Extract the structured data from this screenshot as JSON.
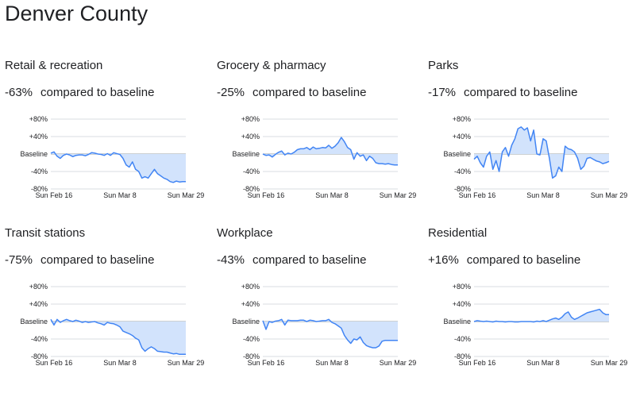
{
  "page": {
    "title": "Denver County"
  },
  "baseline_label": "compared to baseline",
  "y_ticks": [
    "+80%",
    "+40%",
    "Baseline",
    "-40%",
    "-80%"
  ],
  "x_ticks": [
    "Sun Feb 16",
    "Sun Mar 8",
    "Sun Mar 29"
  ],
  "colors": {
    "line": "#4285f4",
    "fill": "#d2e3fc",
    "grid": "#dadce0",
    "baseline": "#9aa0a6"
  },
  "chart_data": [
    {
      "type": "area",
      "title": "Retail & recreation",
      "change": "-63%",
      "ylim": [
        -80,
        80
      ],
      "x": [
        "Feb 15",
        "Feb 16",
        "Feb 17",
        "Feb 18",
        "Feb 19",
        "Feb 20",
        "Feb 21",
        "Feb 22",
        "Feb 23",
        "Feb 24",
        "Feb 25",
        "Feb 26",
        "Feb 27",
        "Feb 28",
        "Feb 29",
        "Mar 1",
        "Mar 2",
        "Mar 3",
        "Mar 4",
        "Mar 5",
        "Mar 6",
        "Mar 7",
        "Mar 8",
        "Mar 9",
        "Mar 10",
        "Mar 11",
        "Mar 12",
        "Mar 13",
        "Mar 14",
        "Mar 15",
        "Mar 16",
        "Mar 17",
        "Mar 18",
        "Mar 19",
        "Mar 20",
        "Mar 21",
        "Mar 22",
        "Mar 23",
        "Mar 24",
        "Mar 25",
        "Mar 26",
        "Mar 27",
        "Mar 28",
        "Mar 29"
      ],
      "values": [
        2,
        5,
        -5,
        -10,
        -3,
        0,
        -2,
        -6,
        -3,
        -2,
        -2,
        -4,
        -1,
        3,
        2,
        0,
        -1,
        -3,
        1,
        -3,
        3,
        1,
        -1,
        -10,
        -25,
        -30,
        -18,
        -35,
        -40,
        -55,
        -52,
        -55,
        -45,
        -35,
        -45,
        -50,
        -55,
        -58,
        -63,
        -65,
        -62,
        -64,
        -63,
        -63
      ]
    },
    {
      "type": "area",
      "title": "Grocery & pharmacy",
      "change": "-25%",
      "ylim": [
        -80,
        80
      ],
      "x": [
        "Feb 15",
        "Feb 16",
        "Feb 17",
        "Feb 18",
        "Feb 19",
        "Feb 20",
        "Feb 21",
        "Feb 22",
        "Feb 23",
        "Feb 24",
        "Feb 25",
        "Feb 26",
        "Feb 27",
        "Feb 28",
        "Feb 29",
        "Mar 1",
        "Mar 2",
        "Mar 3",
        "Mar 4",
        "Mar 5",
        "Mar 6",
        "Mar 7",
        "Mar 8",
        "Mar 9",
        "Mar 10",
        "Mar 11",
        "Mar 12",
        "Mar 13",
        "Mar 14",
        "Mar 15",
        "Mar 16",
        "Mar 17",
        "Mar 18",
        "Mar 19",
        "Mar 20",
        "Mar 21",
        "Mar 22",
        "Mar 23",
        "Mar 24",
        "Mar 25",
        "Mar 26",
        "Mar 27",
        "Mar 28",
        "Mar 29"
      ],
      "values": [
        0,
        -3,
        -2,
        -7,
        -1,
        4,
        7,
        -2,
        2,
        0,
        4,
        10,
        12,
        12,
        15,
        10,
        16,
        12,
        13,
        15,
        14,
        20,
        13,
        18,
        26,
        38,
        28,
        15,
        10,
        -12,
        3,
        -5,
        -2,
        -15,
        -5,
        -10,
        -20,
        -22,
        -22,
        -23,
        -22,
        -24,
        -25,
        -25
      ]
    },
    {
      "type": "area",
      "title": "Parks",
      "change": "-17%",
      "ylim": [
        -80,
        80
      ],
      "x": [
        "Feb 15",
        "Feb 16",
        "Feb 17",
        "Feb 18",
        "Feb 19",
        "Feb 20",
        "Feb 21",
        "Feb 22",
        "Feb 23",
        "Feb 24",
        "Feb 25",
        "Feb 26",
        "Feb 27",
        "Feb 28",
        "Feb 29",
        "Mar 1",
        "Mar 2",
        "Mar 3",
        "Mar 4",
        "Mar 5",
        "Mar 6",
        "Mar 7",
        "Mar 8",
        "Mar 9",
        "Mar 10",
        "Mar 11",
        "Mar 12",
        "Mar 13",
        "Mar 14",
        "Mar 15",
        "Mar 16",
        "Mar 17",
        "Mar 18",
        "Mar 19",
        "Mar 20",
        "Mar 21",
        "Mar 22",
        "Mar 23",
        "Mar 24",
        "Mar 25",
        "Mar 26",
        "Mar 27",
        "Mar 28",
        "Mar 29"
      ],
      "values": [
        -12,
        -5,
        -20,
        -30,
        -5,
        5,
        -35,
        -15,
        -40,
        5,
        15,
        -5,
        20,
        35,
        58,
        62,
        55,
        60,
        30,
        55,
        0,
        -2,
        35,
        30,
        -10,
        -55,
        -50,
        -30,
        -40,
        18,
        12,
        10,
        5,
        -10,
        -35,
        -28,
        -10,
        -8,
        -12,
        -16,
        -18,
        -22,
        -20,
        -17
      ]
    },
    {
      "type": "area",
      "title": "Transit stations",
      "change": "-75%",
      "ylim": [
        -80,
        80
      ],
      "x": [
        "Feb 15",
        "Feb 16",
        "Feb 17",
        "Feb 18",
        "Feb 19",
        "Feb 20",
        "Feb 21",
        "Feb 22",
        "Feb 23",
        "Feb 24",
        "Feb 25",
        "Feb 26",
        "Feb 27",
        "Feb 28",
        "Feb 29",
        "Mar 1",
        "Mar 2",
        "Mar 3",
        "Mar 4",
        "Mar 5",
        "Mar 6",
        "Mar 7",
        "Mar 8",
        "Mar 9",
        "Mar 10",
        "Mar 11",
        "Mar 12",
        "Mar 13",
        "Mar 14",
        "Mar 15",
        "Mar 16",
        "Mar 17",
        "Mar 18",
        "Mar 19",
        "Mar 20",
        "Mar 21",
        "Mar 22",
        "Mar 23",
        "Mar 24",
        "Mar 25",
        "Mar 26",
        "Mar 27",
        "Mar 28",
        "Mar 29"
      ],
      "values": [
        5,
        -8,
        5,
        -2,
        2,
        5,
        2,
        0,
        3,
        1,
        -2,
        0,
        -2,
        -1,
        0,
        -3,
        -5,
        -8,
        -2,
        -4,
        -5,
        -8,
        -12,
        -22,
        -25,
        -28,
        -32,
        -38,
        -42,
        -60,
        -68,
        -62,
        -58,
        -62,
        -68,
        -69,
        -70,
        -70,
        -72,
        -74,
        -73,
        -75,
        -75,
        -75
      ]
    },
    {
      "type": "area",
      "title": "Workplace",
      "change": "-43%",
      "ylim": [
        -80,
        80
      ],
      "x": [
        "Feb 15",
        "Feb 16",
        "Feb 17",
        "Feb 18",
        "Feb 19",
        "Feb 20",
        "Feb 21",
        "Feb 22",
        "Feb 23",
        "Feb 24",
        "Feb 25",
        "Feb 26",
        "Feb 27",
        "Feb 28",
        "Feb 29",
        "Mar 1",
        "Mar 2",
        "Mar 3",
        "Mar 4",
        "Mar 5",
        "Mar 6",
        "Mar 7",
        "Mar 8",
        "Mar 9",
        "Mar 10",
        "Mar 11",
        "Mar 12",
        "Mar 13",
        "Mar 14",
        "Mar 15",
        "Mar 16",
        "Mar 17",
        "Mar 18",
        "Mar 19",
        "Mar 20",
        "Mar 21",
        "Mar 22",
        "Mar 23",
        "Mar 24",
        "Mar 25",
        "Mar 26",
        "Mar 27",
        "Mar 28",
        "Mar 29"
      ],
      "values": [
        2,
        -18,
        0,
        -2,
        1,
        2,
        5,
        -8,
        3,
        2,
        2,
        2,
        3,
        3,
        0,
        3,
        2,
        0,
        1,
        2,
        2,
        5,
        -2,
        -5,
        -10,
        -15,
        -32,
        -42,
        -50,
        -40,
        -42,
        -35,
        -48,
        -55,
        -58,
        -60,
        -60,
        -56,
        -45,
        -43,
        -43,
        -43,
        -43,
        -43
      ]
    },
    {
      "type": "area",
      "title": "Residential",
      "change": "+16%",
      "ylim": [
        -80,
        80
      ],
      "x": [
        "Feb 15",
        "Feb 16",
        "Feb 17",
        "Feb 18",
        "Feb 19",
        "Feb 20",
        "Feb 21",
        "Feb 22",
        "Feb 23",
        "Feb 24",
        "Feb 25",
        "Feb 26",
        "Feb 27",
        "Feb 28",
        "Feb 29",
        "Mar 1",
        "Mar 2",
        "Mar 3",
        "Mar 4",
        "Mar 5",
        "Mar 6",
        "Mar 7",
        "Mar 8",
        "Mar 9",
        "Mar 10",
        "Mar 11",
        "Mar 12",
        "Mar 13",
        "Mar 14",
        "Mar 15",
        "Mar 16",
        "Mar 17",
        "Mar 18",
        "Mar 19",
        "Mar 20",
        "Mar 21",
        "Mar 22",
        "Mar 23",
        "Mar 24",
        "Mar 25",
        "Mar 26",
        "Mar 27",
        "Mar 28",
        "Mar 29"
      ],
      "values": [
        0,
        2,
        1,
        0,
        1,
        0,
        -1,
        1,
        0,
        0,
        -1,
        0,
        0,
        -1,
        -1,
        0,
        0,
        0,
        0,
        -1,
        1,
        0,
        2,
        0,
        3,
        6,
        8,
        5,
        10,
        18,
        22,
        10,
        5,
        8,
        12,
        16,
        20,
        22,
        24,
        26,
        28,
        20,
        16,
        16
      ]
    }
  ]
}
